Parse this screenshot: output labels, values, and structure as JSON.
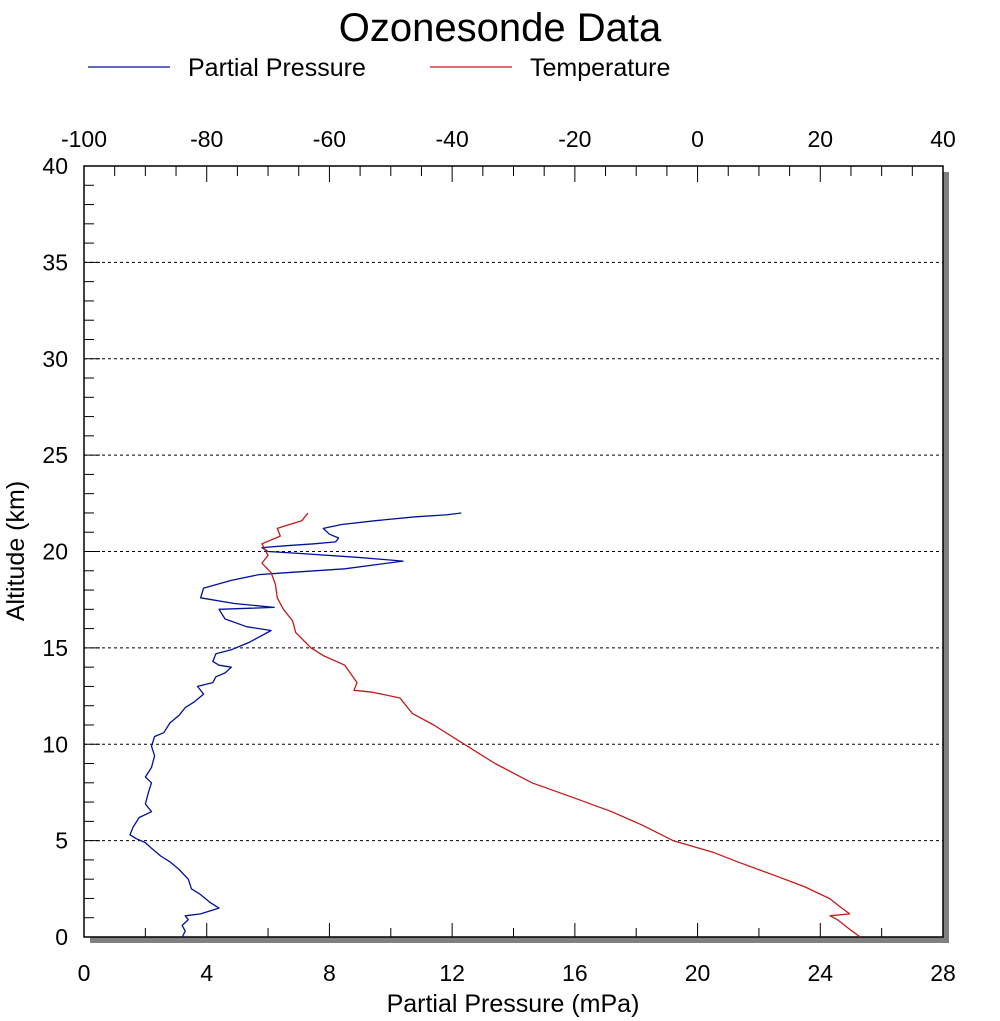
{
  "chart_data": {
    "type": "line",
    "title": "Ozonesonde Data",
    "xlabel": "Partial Pressure (mPa)",
    "ylabel": "Altitude (km)",
    "x_bottom": {
      "range": [
        0,
        28
      ],
      "ticks": [
        "0",
        "4",
        "8",
        "12",
        "16",
        "20",
        "24",
        "28"
      ]
    },
    "x_top": {
      "range": [
        -100,
        40
      ],
      "ticks": [
        "-100",
        "-80",
        "-60",
        "-40",
        "-20",
        "0",
        "20",
        "40"
      ]
    },
    "y": {
      "range": [
        0,
        40
      ],
      "ticks": [
        "0",
        "5",
        "10",
        "15",
        "20",
        "25",
        "30",
        "35",
        "40"
      ]
    },
    "grid": "horizontal-dotted",
    "legend_position": "top",
    "series": [
      {
        "name": "Partial Pressure",
        "axis": "bottom",
        "color": "#00129a",
        "points": [
          [
            3.2,
            0.0
          ],
          [
            3.3,
            0.3
          ],
          [
            3.2,
            0.6
          ],
          [
            3.4,
            0.9
          ],
          [
            3.3,
            1.1
          ],
          [
            3.8,
            1.2
          ],
          [
            4.4,
            1.5
          ],
          [
            4.1,
            1.8
          ],
          [
            3.8,
            2.2
          ],
          [
            3.5,
            2.5
          ],
          [
            3.4,
            3.0
          ],
          [
            3.1,
            3.5
          ],
          [
            2.8,
            3.9
          ],
          [
            2.5,
            4.2
          ],
          [
            2.2,
            4.6
          ],
          [
            2.0,
            4.9
          ],
          [
            1.7,
            5.1
          ],
          [
            1.5,
            5.3
          ],
          [
            1.6,
            5.7
          ],
          [
            1.8,
            6.2
          ],
          [
            2.2,
            6.5
          ],
          [
            2.0,
            6.9
          ],
          [
            2.1,
            7.5
          ],
          [
            2.2,
            8.0
          ],
          [
            2.0,
            8.3
          ],
          [
            2.2,
            8.8
          ],
          [
            2.3,
            9.4
          ],
          [
            2.2,
            9.9
          ],
          [
            2.3,
            10.4
          ],
          [
            2.6,
            10.6
          ],
          [
            2.8,
            11.1
          ],
          [
            3.1,
            11.5
          ],
          [
            3.3,
            11.9
          ],
          [
            3.6,
            12.2
          ],
          [
            3.9,
            12.6
          ],
          [
            3.7,
            13.0
          ],
          [
            4.2,
            13.2
          ],
          [
            4.3,
            13.5
          ],
          [
            4.6,
            13.7
          ],
          [
            4.8,
            14.0
          ],
          [
            4.4,
            14.1
          ],
          [
            4.2,
            14.3
          ],
          [
            4.3,
            14.7
          ],
          [
            4.8,
            14.9
          ],
          [
            5.4,
            15.3
          ],
          [
            6.1,
            15.9
          ],
          [
            5.3,
            16.1
          ],
          [
            4.6,
            16.5
          ],
          [
            4.4,
            17.0
          ],
          [
            6.2,
            17.1
          ],
          [
            4.9,
            17.3
          ],
          [
            3.8,
            17.6
          ],
          [
            3.9,
            18.1
          ],
          [
            4.8,
            18.5
          ],
          [
            5.7,
            18.8
          ],
          [
            6.6,
            18.9
          ],
          [
            8.5,
            19.1
          ],
          [
            10.4,
            19.5
          ],
          [
            8.9,
            19.7
          ],
          [
            7.0,
            19.9
          ],
          [
            6.0,
            20.0
          ],
          [
            5.8,
            20.2
          ],
          [
            6.6,
            20.3
          ],
          [
            7.5,
            20.4
          ],
          [
            8.2,
            20.5
          ],
          [
            8.3,
            20.7
          ],
          [
            8.0,
            20.9
          ],
          [
            7.8,
            21.2
          ],
          [
            8.4,
            21.4
          ],
          [
            9.5,
            21.6
          ],
          [
            10.8,
            21.8
          ],
          [
            11.8,
            21.9
          ],
          [
            12.3,
            22.0
          ]
        ]
      },
      {
        "name": "Temperature",
        "axis": "top",
        "color": "#c21a1a",
        "points": [
          [
            26.5,
            0.0
          ],
          [
            25.2,
            0.3
          ],
          [
            22.8,
            0.9
          ],
          [
            21.6,
            1.1
          ],
          [
            24.8,
            1.2
          ],
          [
            23.5,
            1.5
          ],
          [
            21.5,
            2.0
          ],
          [
            17.5,
            2.6
          ],
          [
            12.5,
            3.2
          ],
          [
            6.5,
            3.9
          ],
          [
            2.5,
            4.4
          ],
          [
            -4.0,
            5.0
          ],
          [
            -9.0,
            5.8
          ],
          [
            -14.0,
            6.5
          ],
          [
            -20.0,
            7.2
          ],
          [
            -27.0,
            8.0
          ],
          [
            -33.0,
            9.0
          ],
          [
            -38.0,
            10.0
          ],
          [
            -43.0,
            11.0
          ],
          [
            -46.5,
            11.6
          ],
          [
            -47.5,
            12.0
          ],
          [
            -48.5,
            12.4
          ],
          [
            -53.0,
            12.7
          ],
          [
            -56.0,
            12.8
          ],
          [
            -55.5,
            13.2
          ],
          [
            -57.5,
            14.1
          ],
          [
            -61.0,
            14.6
          ],
          [
            -63.0,
            15.0
          ],
          [
            -65.5,
            15.8
          ],
          [
            -66.0,
            16.4
          ],
          [
            -67.5,
            17.0
          ],
          [
            -68.5,
            17.6
          ],
          [
            -68.8,
            18.3
          ],
          [
            -69.5,
            18.9
          ],
          [
            -71.0,
            19.4
          ],
          [
            -70.0,
            19.8
          ],
          [
            -71.0,
            20.4
          ],
          [
            -68.0,
            20.8
          ],
          [
            -68.5,
            21.2
          ],
          [
            -66.5,
            21.4
          ],
          [
            -64.5,
            21.6
          ],
          [
            -63.5,
            22.0
          ]
        ]
      }
    ]
  }
}
